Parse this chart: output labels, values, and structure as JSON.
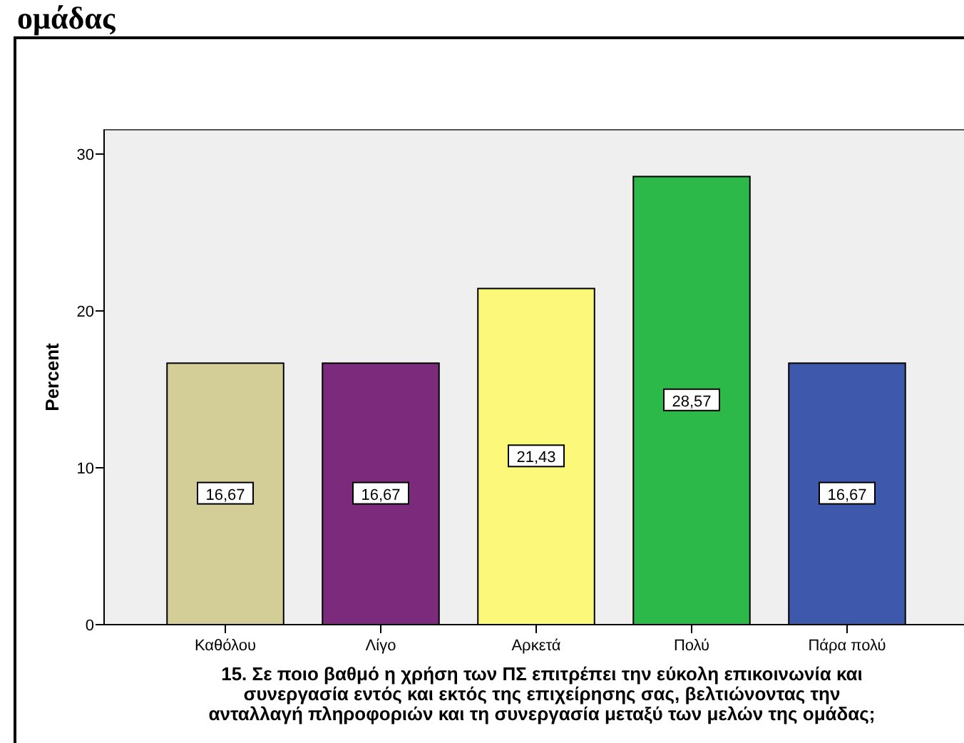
{
  "chart_data": {
    "type": "bar",
    "title": "ομάδας",
    "xlabel": "15.  Σε ποιο βαθμό η χρήση των ΠΣ επιτρέπει την εύκολη επικοινωνία και\nσυνεργασία εντός και εκτός της επιχείρησης σας, βελτιώνοντας την\nανταλλαγή πληροφοριών και τη συνεργασία μεταξύ των μελών της ομάδας;",
    "ylabel": "Percent",
    "categories": [
      "Καθόλου",
      "Λίγο",
      "Αρκετά",
      "Πολύ",
      "Πάρα πολύ"
    ],
    "values": [
      16.67,
      16.67,
      21.43,
      28.57,
      16.67
    ],
    "value_labels": [
      "16,67",
      "16,67",
      "21,43",
      "28,57",
      "16,67"
    ],
    "colors": [
      "#d3ce97",
      "#7b2a7c",
      "#fbf87a",
      "#2db84a",
      "#3e59ab"
    ],
    "ylim": [
      0,
      31.55
    ],
    "yticks": [
      0,
      10,
      20,
      30
    ],
    "grid": false
  }
}
